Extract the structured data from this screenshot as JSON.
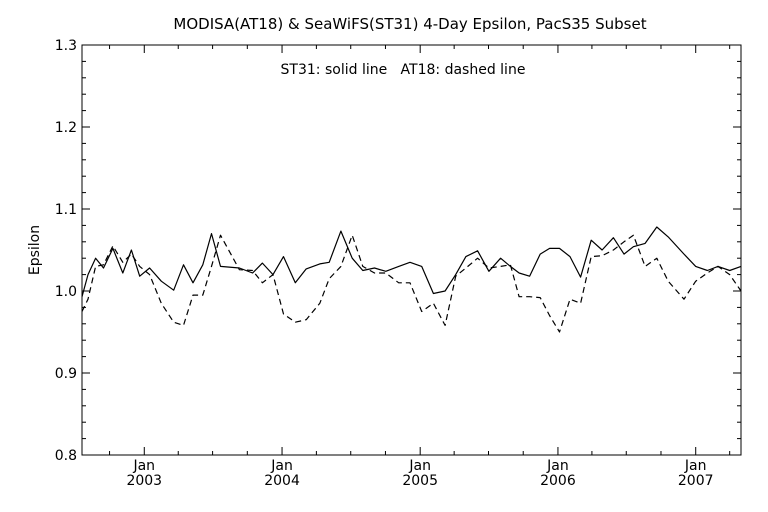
{
  "chart_data": {
    "type": "line",
    "title": "MODISA(AT18) & SeaWiFS(ST31) 4-Day Epsilon, PacS35 Subset",
    "annotation": "ST31: solid line   AT18: dashed line",
    "ylabel": "Epsilon",
    "xlabel": "",
    "ylim": [
      0.8,
      1.3
    ],
    "y_ticks": [
      "0.8",
      "0.9",
      "1.0",
      "1.1",
      "1.2",
      "1.3"
    ],
    "x_range": [
      "2002-07-20",
      "2007-05-01"
    ],
    "x_ticks": [
      {
        "month": "Jan",
        "year": "2003",
        "date": "2003-01-01"
      },
      {
        "month": "Jan",
        "year": "2004",
        "date": "2004-01-01"
      },
      {
        "month": "Jan",
        "year": "2005",
        "date": "2005-01-01"
      },
      {
        "month": "Jan",
        "year": "2006",
        "date": "2006-01-01"
      },
      {
        "month": "Jan",
        "year": "2007",
        "date": "2007-01-01"
      }
    ],
    "grid": false,
    "series": [
      {
        "name": "ST31",
        "style": "solid",
        "color": "#000000",
        "points": [
          [
            "2002-07-20",
            0.993
          ],
          [
            "2002-08-05",
            1.02
          ],
          [
            "2002-08-25",
            1.04
          ],
          [
            "2002-09-15",
            1.028
          ],
          [
            "2002-10-10",
            1.052
          ],
          [
            "2002-11-05",
            1.022
          ],
          [
            "2002-11-28",
            1.05
          ],
          [
            "2002-12-20",
            1.018
          ],
          [
            "2003-01-15",
            1.028
          ],
          [
            "2003-02-15",
            1.012
          ],
          [
            "2003-03-20",
            1.001
          ],
          [
            "2003-04-15",
            1.032
          ],
          [
            "2003-05-10",
            1.01
          ],
          [
            "2003-06-05",
            1.032
          ],
          [
            "2003-06-28",
            1.07
          ],
          [
            "2003-07-22",
            1.03
          ],
          [
            "2003-09-10",
            1.028
          ],
          [
            "2003-10-15",
            1.022
          ],
          [
            "2003-11-10",
            1.034
          ],
          [
            "2003-12-08",
            1.02
          ],
          [
            "2004-01-05",
            1.042
          ],
          [
            "2004-02-05",
            1.01
          ],
          [
            "2004-03-05",
            1.027
          ],
          [
            "2004-04-10",
            1.033
          ],
          [
            "2004-05-05",
            1.035
          ],
          [
            "2004-06-05",
            1.073
          ],
          [
            "2004-07-05",
            1.04
          ],
          [
            "2004-08-02",
            1.025
          ],
          [
            "2004-09-02",
            1.028
          ],
          [
            "2004-10-02",
            1.024
          ],
          [
            "2004-11-05",
            1.03
          ],
          [
            "2004-12-05",
            1.035
          ],
          [
            "2005-01-05",
            1.03
          ],
          [
            "2005-02-05",
            0.997
          ],
          [
            "2005-03-08",
            1.0
          ],
          [
            "2005-04-05",
            1.02
          ],
          [
            "2005-05-02",
            1.042
          ],
          [
            "2005-06-02",
            1.049
          ],
          [
            "2005-07-02",
            1.024
          ],
          [
            "2005-08-02",
            1.04
          ],
          [
            "2005-08-28",
            1.03
          ],
          [
            "2005-09-20",
            1.022
          ],
          [
            "2005-10-18",
            1.018
          ],
          [
            "2005-11-15",
            1.045
          ],
          [
            "2005-12-10",
            1.052
          ],
          [
            "2006-01-05",
            1.052
          ],
          [
            "2006-02-02",
            1.042
          ],
          [
            "2006-03-02",
            1.017
          ],
          [
            "2006-03-30",
            1.062
          ],
          [
            "2006-04-28",
            1.05
          ],
          [
            "2006-05-28",
            1.065
          ],
          [
            "2006-06-25",
            1.045
          ],
          [
            "2006-07-20",
            1.054
          ],
          [
            "2006-08-20",
            1.058
          ],
          [
            "2006-09-20",
            1.078
          ],
          [
            "2006-10-20",
            1.066
          ],
          [
            "2006-12-01",
            1.045
          ],
          [
            "2007-01-01",
            1.03
          ],
          [
            "2007-02-01",
            1.025
          ],
          [
            "2007-03-01",
            1.03
          ],
          [
            "2007-04-01",
            1.025
          ],
          [
            "2007-05-01",
            1.03
          ]
        ]
      },
      {
        "name": "AT18",
        "style": "dashed",
        "color": "#000000",
        "points": [
          [
            "2002-07-20",
            0.975
          ],
          [
            "2002-08-05",
            0.99
          ],
          [
            "2002-08-25",
            1.03
          ],
          [
            "2002-09-15",
            1.032
          ],
          [
            "2002-10-10",
            1.055
          ],
          [
            "2002-11-05",
            1.035
          ],
          [
            "2002-11-28",
            1.045
          ],
          [
            "2002-12-20",
            1.03
          ],
          [
            "2003-01-15",
            1.02
          ],
          [
            "2003-02-15",
            0.985
          ],
          [
            "2003-03-20",
            0.962
          ],
          [
            "2003-04-15",
            0.958
          ],
          [
            "2003-05-10",
            0.995
          ],
          [
            "2003-06-05",
            0.995
          ],
          [
            "2003-06-28",
            1.03
          ],
          [
            "2003-07-22",
            1.068
          ],
          [
            "2003-09-10",
            1.026
          ],
          [
            "2003-10-15",
            1.025
          ],
          [
            "2003-11-10",
            1.01
          ],
          [
            "2003-12-08",
            1.02
          ],
          [
            "2004-01-05",
            0.972
          ],
          [
            "2004-02-05",
            0.962
          ],
          [
            "2004-03-05",
            0.965
          ],
          [
            "2004-04-10",
            0.985
          ],
          [
            "2004-05-05",
            1.015
          ],
          [
            "2004-06-05",
            1.03
          ],
          [
            "2004-07-05",
            1.068
          ],
          [
            "2004-08-02",
            1.03
          ],
          [
            "2004-09-02",
            1.022
          ],
          [
            "2004-10-02",
            1.022
          ],
          [
            "2004-11-05",
            1.01
          ],
          [
            "2004-12-05",
            1.01
          ],
          [
            "2005-01-05",
            0.975
          ],
          [
            "2005-02-05",
            0.985
          ],
          [
            "2005-03-08",
            0.958
          ],
          [
            "2005-04-05",
            1.018
          ],
          [
            "2005-05-02",
            1.028
          ],
          [
            "2005-06-02",
            1.04
          ],
          [
            "2005-07-02",
            1.028
          ],
          [
            "2005-08-02",
            1.03
          ],
          [
            "2005-08-28",
            1.032
          ],
          [
            "2005-09-20",
            0.993
          ],
          [
            "2005-10-18",
            0.993
          ],
          [
            "2005-11-15",
            0.992
          ],
          [
            "2005-12-10",
            0.97
          ],
          [
            "2006-01-05",
            0.95
          ],
          [
            "2006-02-02",
            0.99
          ],
          [
            "2006-03-02",
            0.985
          ],
          [
            "2006-03-30",
            1.042
          ],
          [
            "2006-04-28",
            1.043
          ],
          [
            "2006-05-28",
            1.05
          ],
          [
            "2006-06-25",
            1.06
          ],
          [
            "2006-07-20",
            1.068
          ],
          [
            "2006-08-20",
            1.03
          ],
          [
            "2006-09-20",
            1.04
          ],
          [
            "2006-10-20",
            1.012
          ],
          [
            "2006-12-01",
            0.99
          ],
          [
            "2007-01-01",
            1.012
          ],
          [
            "2007-02-01",
            1.022
          ],
          [
            "2007-03-01",
            1.03
          ],
          [
            "2007-04-01",
            1.02
          ],
          [
            "2007-05-01",
            1.0
          ]
        ]
      }
    ]
  }
}
